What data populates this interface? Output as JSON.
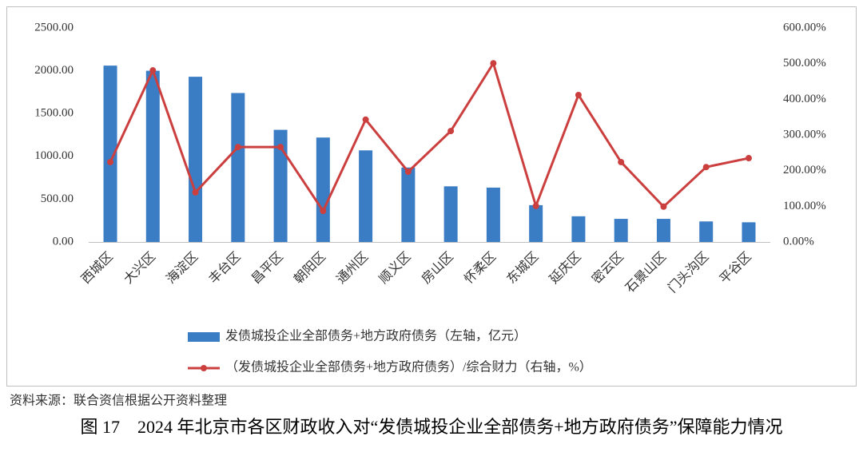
{
  "chart_data": {
    "type": "bar",
    "categories": [
      "西城区",
      "大兴区",
      "海淀区",
      "丰台区",
      "昌平区",
      "朝阳区",
      "通州区",
      "顺义区",
      "房山区",
      "怀柔区",
      "东城区",
      "延庆区",
      "密云区",
      "石景山区",
      "门头沟区",
      "平谷区"
    ],
    "series": [
      {
        "name": "发债城投企业全部债务+地方政府债务（左轴，亿元）",
        "type": "bar",
        "color": "#3b7dc4",
        "values": [
          2060,
          2000,
          1930,
          1740,
          1310,
          1220,
          1070,
          870,
          650,
          635,
          430,
          300,
          270,
          270,
          240,
          230
        ]
      },
      {
        "name": "（发债城投企业全部债务+地方政府债务）/综合财力（右轴，%）",
        "type": "line",
        "axis": "y2",
        "color": "#cc3f3f",
        "values": [
          224,
          481,
          139,
          266,
          266,
          87,
          343,
          197,
          311,
          501,
          101,
          412,
          224,
          99,
          210,
          235
        ]
      }
    ],
    "ylim": [
      0,
      2500
    ],
    "yticks": [
      {
        "value": 0,
        "label": "0.00"
      },
      {
        "value": 500,
        "label": "500.00"
      },
      {
        "value": 1000,
        "label": "1000.00"
      },
      {
        "value": 1500,
        "label": "1500.00"
      },
      {
        "value": 2000,
        "label": "2000.00"
      },
      {
        "value": 2500,
        "label": "2500.00"
      }
    ],
    "y2lim": [
      0,
      600
    ],
    "y2ticks": [
      {
        "value": 0,
        "label": "0.00%"
      },
      {
        "value": 100,
        "label": "100.00%"
      },
      {
        "value": 200,
        "label": "200.00%"
      },
      {
        "value": 300,
        "label": "300.00%"
      },
      {
        "value": 400,
        "label": "400.00%"
      },
      {
        "value": 500,
        "label": "500.00%"
      },
      {
        "value": 600,
        "label": "600.00%"
      }
    ],
    "grid": false,
    "legend": "bottom",
    "source": "资料来源：联合资信根据公开资料整理",
    "caption": "图 17　2024 年北京市各区财政收入对“发债城投企业全部债务+地方政府债务”保障能力情况"
  }
}
